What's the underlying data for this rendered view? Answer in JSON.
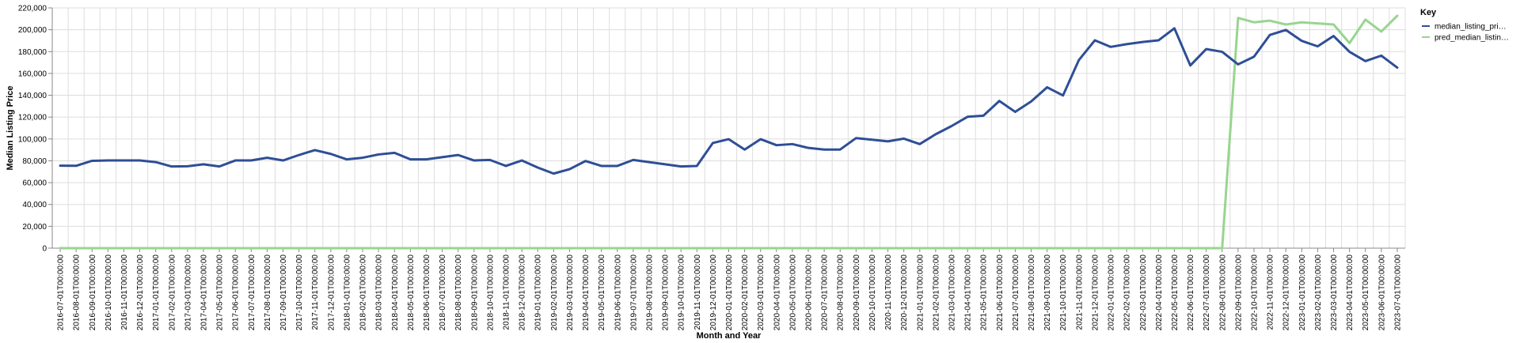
{
  "chart_data": {
    "type": "line",
    "xlabel": "Month and Year",
    "ylabel": "Median Listing Price",
    "ylim": [
      0,
      220000
    ],
    "yticks": [
      "0",
      "20,000",
      "40,000",
      "60,000",
      "80,000",
      "100,000",
      "120,000",
      "140,000",
      "160,000",
      "180,000",
      "200,000",
      "220,000"
    ],
    "grid": true,
    "legend": {
      "title": "Key",
      "placement": "right",
      "entries": [
        "median_listing_pri…",
        "pred_median_listin…"
      ]
    },
    "x": [
      "2016-07-01T00:00:00",
      "2016-08-01T00:00:00",
      "2016-09-01T00:00:00",
      "2016-10-01T00:00:00",
      "2016-11-01T00:00:00",
      "2016-12-01T00:00:00",
      "2017-01-01T00:00:00",
      "2017-02-01T00:00:00",
      "2017-03-01T00:00:00",
      "2017-04-01T00:00:00",
      "2017-05-01T00:00:00",
      "2017-06-01T00:00:00",
      "2017-07-01T00:00:00",
      "2017-08-01T00:00:00",
      "2017-09-01T00:00:00",
      "2017-10-01T00:00:00",
      "2017-11-01T00:00:00",
      "2017-12-01T00:00:00",
      "2018-01-01T00:00:00",
      "2018-02-01T00:00:00",
      "2018-03-01T00:00:00",
      "2018-04-01T00:00:00",
      "2018-05-01T00:00:00",
      "2018-06-01T00:00:00",
      "2018-07-01T00:00:00",
      "2018-08-01T00:00:00",
      "2018-09-01T00:00:00",
      "2018-10-01T00:00:00",
      "2018-11-01T00:00:00",
      "2018-12-01T00:00:00",
      "2019-01-01T00:00:00",
      "2019-02-01T00:00:00",
      "2019-03-01T00:00:00",
      "2019-04-01T00:00:00",
      "2019-05-01T00:00:00",
      "2019-06-01T00:00:00",
      "2019-07-01T00:00:00",
      "2019-08-01T00:00:00",
      "2019-09-01T00:00:00",
      "2019-10-01T00:00:00",
      "2019-11-01T00:00:00",
      "2019-12-01T00:00:00",
      "2020-01-01T00:00:00",
      "2020-02-01T00:00:00",
      "2020-03-01T00:00:00",
      "2020-04-01T00:00:00",
      "2020-05-01T00:00:00",
      "2020-06-01T00:00:00",
      "2020-07-01T00:00:00",
      "2020-08-01T00:00:00",
      "2020-09-01T00:00:00",
      "2020-10-01T00:00:00",
      "2020-11-01T00:00:00",
      "2020-12-01T00:00:00",
      "2021-01-01T00:00:00",
      "2021-02-01T00:00:00",
      "2021-03-01T00:00:00",
      "2021-04-01T00:00:00",
      "2021-05-01T00:00:00",
      "2021-06-01T00:00:00",
      "2021-07-01T00:00:00",
      "2021-08-01T00:00:00",
      "2021-09-01T00:00:00",
      "2021-10-01T00:00:00",
      "2021-11-01T00:00:00",
      "2021-12-01T00:00:00",
      "2022-01-01T00:00:00",
      "2022-02-01T00:00:00",
      "2022-03-01T00:00:00",
      "2022-04-01T00:00:00",
      "2022-05-01T00:00:00",
      "2022-06-01T00:00:00",
      "2022-07-01T00:00:00",
      "2022-08-01T00:00:00",
      "2022-09-01T00:00:00",
      "2022-10-01T00:00:00",
      "2022-11-01T00:00:00",
      "2022-12-01T00:00:00",
      "2023-01-01T00:00:00",
      "2023-02-01T00:00:00",
      "2023-03-01T00:00:00",
      "2023-04-01T00:00:00",
      "2023-05-01T00:00:00",
      "2023-06-01T00:00:00",
      "2023-07-01T00:00:00"
    ],
    "series": [
      {
        "name": "median_listing_pri…",
        "color": "#2e4e96",
        "values": [
          75500,
          75400,
          80000,
          80300,
          80300,
          80300,
          78800,
          74800,
          75000,
          76800,
          74800,
          80300,
          80300,
          82800,
          80300,
          85300,
          89800,
          86300,
          81300,
          82800,
          85800,
          87300,
          81300,
          81300,
          83300,
          85300,
          80300,
          80800,
          75300,
          80300,
          73800,
          68300,
          72300,
          79800,
          75300,
          75300,
          80800,
          78800,
          76800,
          74800,
          75300,
          96300,
          99800,
          90300,
          99800,
          94300,
          95300,
          91800,
          90300,
          90300,
          100800,
          99300,
          97800,
          100300,
          95300,
          104300,
          111800,
          120300,
          121300,
          134800,
          124800,
          134300,
          147300,
          139800,
          172300,
          190300,
          184300,
          186800,
          188800,
          190300,
          201300,
          167300,
          182300,
          179800,
          168300,
          175300,
          195300,
          199800,
          189800,
          184800,
          194300,
          179800,
          171300,
          176300,
          165300
        ]
      },
      {
        "name": "pred_median_listin…",
        "color": "#98d58f",
        "values": [
          0,
          0,
          0,
          0,
          0,
          0,
          0,
          0,
          0,
          0,
          0,
          0,
          0,
          0,
          0,
          0,
          0,
          0,
          0,
          0,
          0,
          0,
          0,
          0,
          0,
          0,
          0,
          0,
          0,
          0,
          0,
          0,
          0,
          0,
          0,
          0,
          0,
          0,
          0,
          0,
          0,
          0,
          0,
          0,
          0,
          0,
          0,
          0,
          0,
          0,
          0,
          0,
          0,
          0,
          0,
          0,
          0,
          0,
          0,
          0,
          0,
          0,
          0,
          0,
          0,
          0,
          0,
          0,
          0,
          0,
          0,
          0,
          0,
          0,
          210800,
          206800,
          208300,
          204800,
          206800,
          205800,
          204800,
          187800,
          209300,
          198300,
          212800
        ]
      }
    ]
  }
}
